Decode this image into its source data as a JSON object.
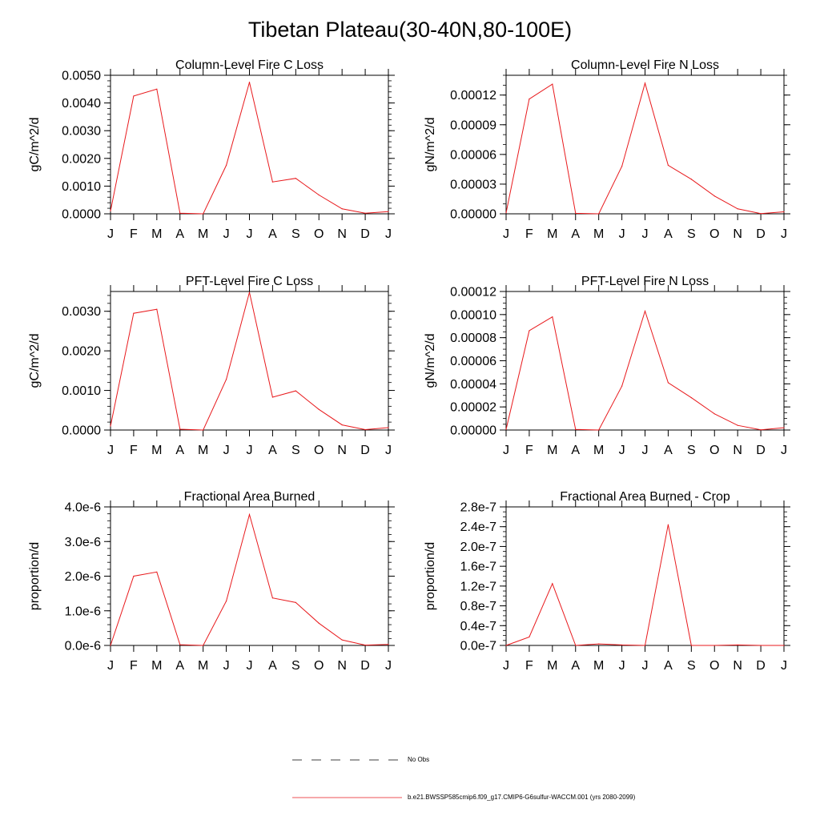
{
  "title": "Tibetan Plateau(30-40N,80-100E)",
  "months": [
    "J",
    "F",
    "M",
    "A",
    "M",
    "J",
    "J",
    "A",
    "S",
    "O",
    "N",
    "D",
    "J"
  ],
  "colors": {
    "model": "#e8191c",
    "obs": "#000000",
    "axis": "#000000"
  },
  "legend": {
    "obs_label": "No Obs",
    "model_label": "b.e21.BWSSP585cmip6.f09_g17.CMIP6-G6sulfur-WACCM.001 (yrs 2080-2099)"
  },
  "chart_data": [
    {
      "type": "line",
      "title": "Column-Level Fire C Loss",
      "ylabel": "gC/m^2/d",
      "ylim": [
        0,
        0.005
      ],
      "major": 0.001,
      "minor": 0.0002,
      "tick_labels": [
        "0.0000",
        "0.0010",
        "0.0020",
        "0.0030",
        "0.0040",
        "0.0050"
      ],
      "categories": [
        "J",
        "F",
        "M",
        "A",
        "M",
        "J",
        "J",
        "A",
        "S",
        "O",
        "N",
        "D",
        "J"
      ],
      "series": [
        {
          "values": [
            0.0001,
            0.00425,
            0.0045,
            2e-05,
            0.0,
            0.00175,
            0.00475,
            0.00115,
            0.00128,
            0.00068,
            0.00018,
            2e-05,
            8e-05
          ]
        }
      ]
    },
    {
      "type": "line",
      "title": "Column-Level Fire N Loss",
      "ylabel": "gN/m^2/d",
      "ylim": [
        0,
        0.00014
      ],
      "major": 3e-05,
      "minor": 1e-05,
      "tick_labels": [
        "0.00000",
        "0.00003",
        "0.00006",
        "0.00009",
        "0.00012"
      ],
      "categories": [
        "J",
        "F",
        "M",
        "A",
        "M",
        "J",
        "J",
        "A",
        "S",
        "O",
        "N",
        "D",
        "J"
      ],
      "series": [
        {
          "values": [
            1e-06,
            0.000116,
            0.000131,
            5e-07,
            0.0,
            4.8e-05,
            0.000132,
            4.9e-05,
            3.5e-05,
            1.8e-05,
            5e-06,
            2e-07,
            2e-06
          ]
        }
      ]
    },
    {
      "type": "line",
      "title": "PFT-Level Fire C Loss",
      "ylabel": "gC/m^2/d",
      "ylim": [
        0,
        0.0035
      ],
      "major": 0.001,
      "minor": 0.0002,
      "tick_labels": [
        "0.0000",
        "0.0010",
        "0.0020",
        "0.0030"
      ],
      "categories": [
        "J",
        "F",
        "M",
        "A",
        "M",
        "J",
        "J",
        "A",
        "S",
        "O",
        "N",
        "D",
        "J"
      ],
      "series": [
        {
          "values": [
            0.0001,
            0.00295,
            0.00305,
            2e-05,
            0.0,
            0.00128,
            0.00348,
            0.00083,
            0.00099,
            0.00052,
            0.00013,
            1e-05,
            6e-05
          ]
        }
      ]
    },
    {
      "type": "line",
      "title": "PFT-Level Fire N Loss",
      "ylabel": "gN/m^2/d",
      "ylim": [
        0,
        0.00012
      ],
      "major": 2e-05,
      "minor": 5e-06,
      "tick_labels": [
        "0.00000",
        "0.00002",
        "0.00004",
        "0.00006",
        "0.00008",
        "0.00010",
        "0.00012"
      ],
      "categories": [
        "J",
        "F",
        "M",
        "A",
        "M",
        "J",
        "J",
        "A",
        "S",
        "O",
        "N",
        "D",
        "J"
      ],
      "series": [
        {
          "values": [
            5e-07,
            8.6e-05,
            9.8e-05,
            5e-07,
            0.0,
            3.8e-05,
            0.000103,
            4.1e-05,
            2.8e-05,
            1.4e-05,
            4e-06,
            2e-07,
            2e-06
          ]
        }
      ]
    },
    {
      "type": "line",
      "title": "Fractional Area Burned",
      "ylabel": "proportion/d",
      "ylim": [
        0,
        4e-06
      ],
      "major": 1e-06,
      "minor": 2e-07,
      "tick_labels": [
        "0.0e-6",
        "1.0e-6",
        "2.0e-6",
        "3.0e-6",
        "4.0e-6"
      ],
      "categories": [
        "J",
        "F",
        "M",
        "A",
        "M",
        "J",
        "J",
        "A",
        "S",
        "O",
        "N",
        "D",
        "J"
      ],
      "series": [
        {
          "values": [
            0.0,
            2e-06,
            2.12e-06,
            2e-08,
            0.0,
            1.28e-06,
            3.78e-06,
            1.37e-06,
            1.24e-06,
            6.4e-07,
            1.6e-07,
            1e-08,
            3e-08
          ]
        }
      ]
    },
    {
      "type": "line",
      "title": "Fractional Area Burned - Crop",
      "ylabel": "proportion/d",
      "ylim": [
        0,
        2.8e-07
      ],
      "major": 4e-08,
      "minor": 1e-08,
      "tick_labels": [
        "0.0e-7",
        "0.4e-7",
        "0.8e-7",
        "1.2e-7",
        "1.6e-7",
        "2.0e-7",
        "2.4e-7",
        "2.8e-7"
      ],
      "categories": [
        "J",
        "F",
        "M",
        "A",
        "M",
        "J",
        "J",
        "A",
        "S",
        "O",
        "N",
        "D",
        "J"
      ],
      "series": [
        {
          "values": [
            0.0,
            1.7e-08,
            1.25e-07,
            0.0,
            3e-09,
            1e-09,
            0.0,
            2.44e-07,
            0.0,
            0.0,
            1e-09,
            0.0,
            0.0
          ]
        }
      ]
    }
  ]
}
